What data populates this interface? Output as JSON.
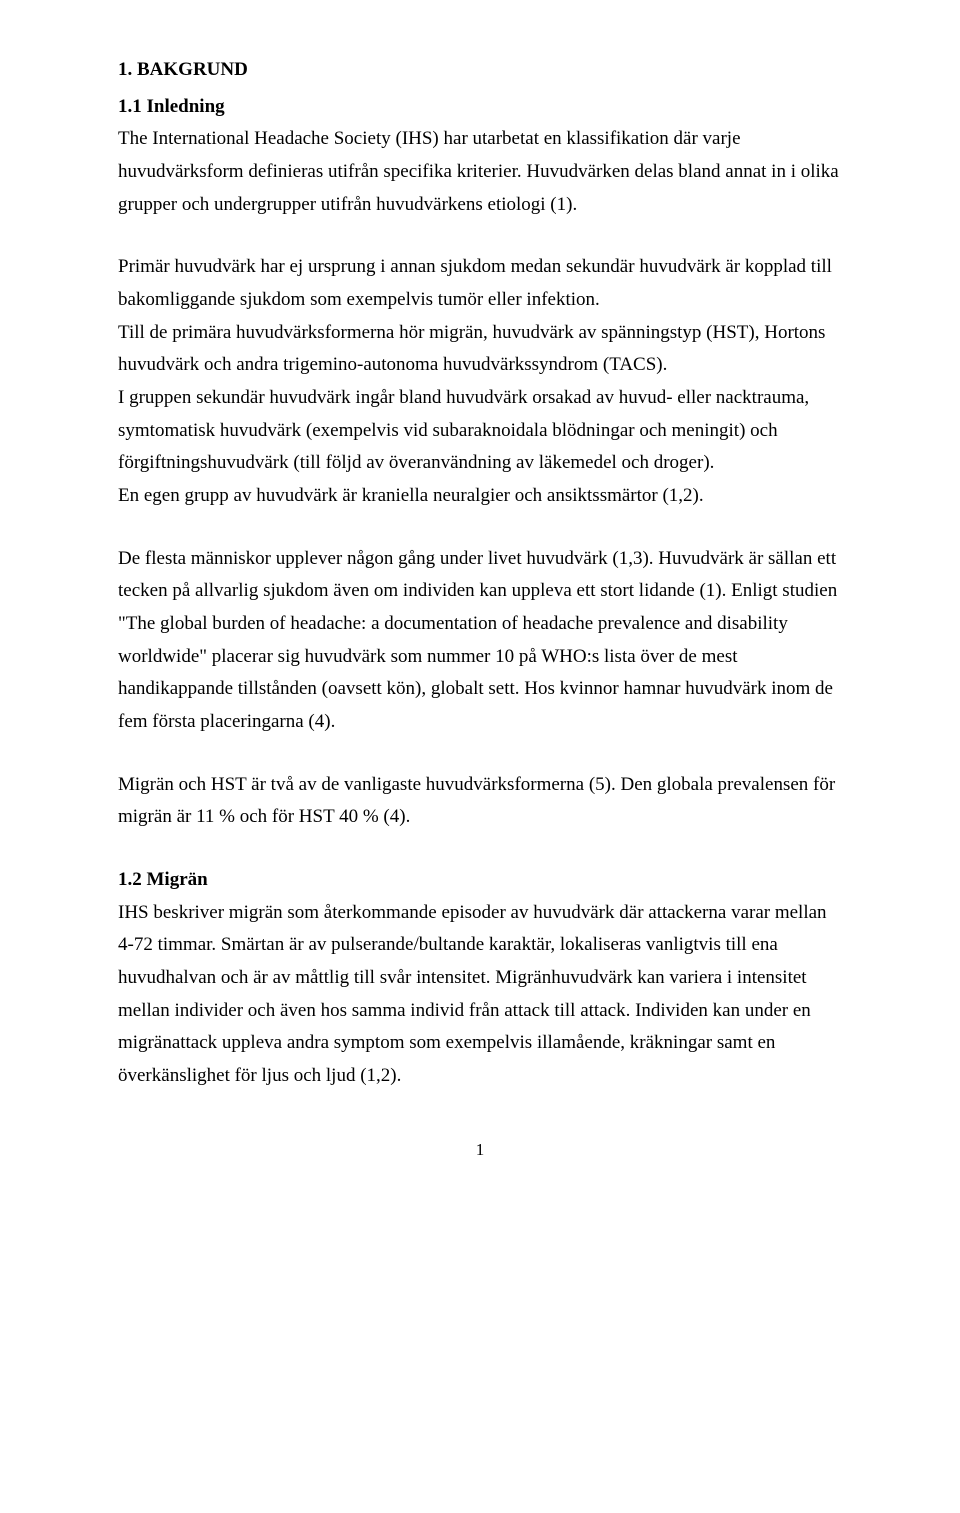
{
  "heading1": "1. BAKGRUND",
  "heading2": "1.1 Inledning",
  "p1": "The International Headache Society (IHS) har utarbetat en klassifikation där varje huvudvärksform definieras utifrån specifika kriterier. Huvudvärken delas bland annat in i olika grupper och undergrupper utifrån huvudvärkens etiologi (1).",
  "p2": "Primär huvudvärk har ej ursprung i annan sjukdom medan sekundär huvudvärk är kopplad till bakomliggande sjukdom som exempelvis tumör eller infektion.",
  "p3": "Till de primära huvudvärksformerna hör migrän, huvudvärk av spänningstyp (HST), Hortons huvudvärk och andra trigemino-autonoma huvudvärkssyndrom (TACS).",
  "p4": "I gruppen sekundär huvudvärk ingår bland huvudvärk orsakad av huvud- eller nacktrauma, symtomatisk huvudvärk (exempelvis vid subaraknoidala blödningar och meningit) och förgiftningshuvudvärk (till följd av överanvändning av läkemedel och droger).",
  "p5": "En egen grupp av huvudvärk är kraniella neuralgier och ansiktssmärtor (1,2).",
  "p6": "De flesta människor upplever någon gång under livet huvudvärk (1,3). Huvudvärk är sällan ett tecken på allvarlig sjukdom även om individen kan uppleva ett stort lidande (1). Enligt studien \"The global burden of headache: a documentation of headache prevalence and disability worldwide\" placerar sig huvudvärk som nummer 10 på WHO:s lista över de mest handikappande tillstånden (oavsett kön), globalt sett. Hos kvinnor hamnar huvudvärk inom de fem första placeringarna (4).",
  "p7": "Migrän och HST är två av de vanligaste huvudvärksformerna (5). Den globala prevalensen för migrän är 11 % och för HST 40 % (4).",
  "heading3": "1.2 Migrän",
  "p8": "IHS beskriver migrän som återkommande episoder av huvudvärk där attackerna varar mellan 4-72 timmar. Smärtan är av pulserande/bultande karaktär, lokaliseras vanligtvis till ena huvudhalvan och är av måttlig till svår intensitet. Migränhuvudvärk kan variera i intensitet mellan individer och även hos samma individ från attack till attack. Individen kan under en migränattack uppleva andra symptom som exempelvis illamående, kräkningar samt en överkänslighet för ljus och ljud (1,2).",
  "pageNumber": "1"
}
